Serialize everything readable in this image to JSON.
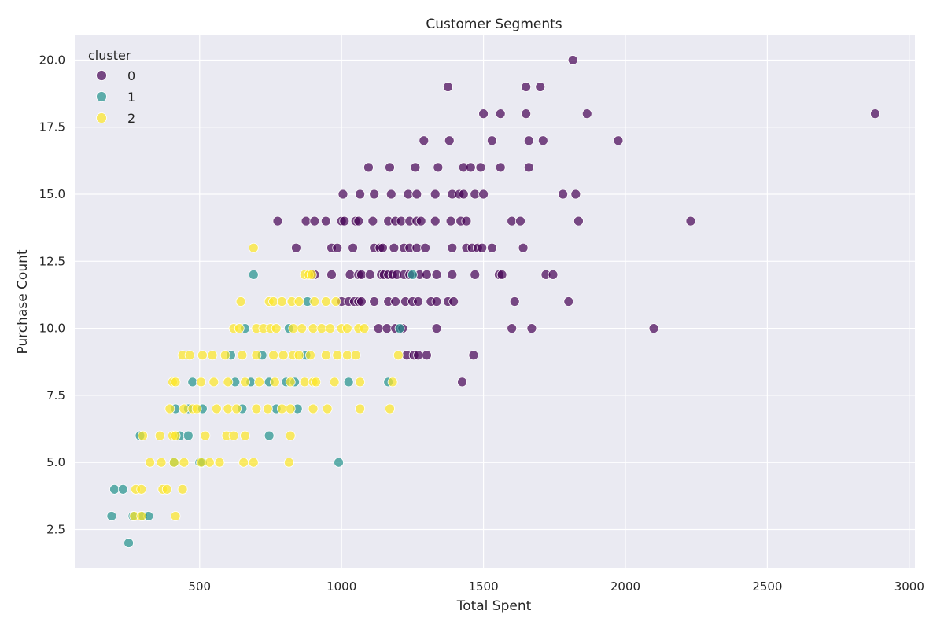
{
  "chart_data": {
    "type": "scatter",
    "title": "Customer Segments",
    "xlabel": "Total Spent",
    "ylabel": "Purchase Count",
    "xlim": [
      60,
      3020
    ],
    "ylim": [
      1.05,
      20.95
    ],
    "xticks": [
      500,
      1000,
      1500,
      2000,
      2500,
      3000
    ],
    "yticks": [
      2.5,
      5.0,
      7.5,
      10.0,
      12.5,
      15.0,
      17.5,
      20.0
    ],
    "grid": true,
    "legend": {
      "title": "cluster",
      "position": "top-left"
    },
    "series": [
      {
        "name": "0",
        "color": "#440154",
        "points": [
          [
            1815,
            20
          ],
          [
            1375,
            19
          ],
          [
            1650,
            19
          ],
          [
            1700,
            19
          ],
          [
            1500,
            18
          ],
          [
            1560,
            18
          ],
          [
            1650,
            18
          ],
          [
            1865,
            18
          ],
          [
            2880,
            18
          ],
          [
            1290,
            17
          ],
          [
            1380,
            17
          ],
          [
            1530,
            17
          ],
          [
            1660,
            17
          ],
          [
            1710,
            17
          ],
          [
            1975,
            17
          ],
          [
            1095,
            16
          ],
          [
            1170,
            16
          ],
          [
            1260,
            16
          ],
          [
            1340,
            16
          ],
          [
            1430,
            16
          ],
          [
            1455,
            16
          ],
          [
            1490,
            16
          ],
          [
            1560,
            16
          ],
          [
            1660,
            16
          ],
          [
            1005,
            15
          ],
          [
            1065,
            15
          ],
          [
            1115,
            15
          ],
          [
            1175,
            15
          ],
          [
            1235,
            15
          ],
          [
            1265,
            15
          ],
          [
            1330,
            15
          ],
          [
            1390,
            15
          ],
          [
            1415,
            15
          ],
          [
            1430,
            15
          ],
          [
            1470,
            15
          ],
          [
            1500,
            15
          ],
          [
            1780,
            15
          ],
          [
            1825,
            15
          ],
          [
            775,
            14
          ],
          [
            875,
            14
          ],
          [
            905,
            14
          ],
          [
            945,
            14
          ],
          [
            1000,
            14
          ],
          [
            1010,
            14
          ],
          [
            1050,
            14
          ],
          [
            1060,
            14
          ],
          [
            1110,
            14
          ],
          [
            1165,
            14
          ],
          [
            1190,
            14
          ],
          [
            1210,
            14
          ],
          [
            1240,
            14
          ],
          [
            1265,
            14
          ],
          [
            1280,
            14
          ],
          [
            1330,
            14
          ],
          [
            1385,
            14
          ],
          [
            1420,
            14
          ],
          [
            1440,
            14
          ],
          [
            1600,
            14
          ],
          [
            1630,
            14
          ],
          [
            1835,
            14
          ],
          [
            2230,
            14
          ],
          [
            840,
            13
          ],
          [
            965,
            13
          ],
          [
            985,
            13
          ],
          [
            1040,
            13
          ],
          [
            1115,
            13
          ],
          [
            1135,
            13
          ],
          [
            1145,
            13
          ],
          [
            1185,
            13
          ],
          [
            1220,
            13
          ],
          [
            1240,
            13
          ],
          [
            1265,
            13
          ],
          [
            1295,
            13
          ],
          [
            1390,
            13
          ],
          [
            1440,
            13
          ],
          [
            1460,
            13
          ],
          [
            1480,
            13
          ],
          [
            1495,
            13
          ],
          [
            1530,
            13
          ],
          [
            1640,
            13
          ],
          [
            905,
            12
          ],
          [
            965,
            12
          ],
          [
            1030,
            12
          ],
          [
            1060,
            12
          ],
          [
            1070,
            12
          ],
          [
            1100,
            12
          ],
          [
            1140,
            12
          ],
          [
            1150,
            12
          ],
          [
            1165,
            12
          ],
          [
            1180,
            12
          ],
          [
            1195,
            12
          ],
          [
            1220,
            12
          ],
          [
            1240,
            12
          ],
          [
            1275,
            12
          ],
          [
            1300,
            12
          ],
          [
            1335,
            12
          ],
          [
            1390,
            12
          ],
          [
            1470,
            12
          ],
          [
            1555,
            12
          ],
          [
            1565,
            12
          ],
          [
            1720,
            12
          ],
          [
            1745,
            12
          ],
          [
            1000,
            11
          ],
          [
            1025,
            11
          ],
          [
            1045,
            11
          ],
          [
            1060,
            11
          ],
          [
            1070,
            11
          ],
          [
            1115,
            11
          ],
          [
            1165,
            11
          ],
          [
            1190,
            11
          ],
          [
            1225,
            11
          ],
          [
            1250,
            11
          ],
          [
            1270,
            11
          ],
          [
            1315,
            11
          ],
          [
            1335,
            11
          ],
          [
            1375,
            11
          ],
          [
            1395,
            11
          ],
          [
            1610,
            11
          ],
          [
            1800,
            11
          ],
          [
            1130,
            10
          ],
          [
            1160,
            10
          ],
          [
            1190,
            10
          ],
          [
            1215,
            10
          ],
          [
            1335,
            10
          ],
          [
            1600,
            10
          ],
          [
            1670,
            10
          ],
          [
            2100,
            10
          ],
          [
            1230,
            9
          ],
          [
            1255,
            9
          ],
          [
            1270,
            9
          ],
          [
            1300,
            9
          ],
          [
            1465,
            9
          ],
          [
            1425,
            8
          ]
        ]
      },
      {
        "name": "1",
        "color": "#21918c",
        "points": [
          [
            690,
            12
          ],
          [
            1250,
            12
          ],
          [
            880,
            11
          ],
          [
            660,
            10
          ],
          [
            815,
            10
          ],
          [
            1205,
            10
          ],
          [
            610,
            9
          ],
          [
            720,
            9
          ],
          [
            875,
            9
          ],
          [
            475,
            8
          ],
          [
            625,
            8
          ],
          [
            680,
            8
          ],
          [
            745,
            8
          ],
          [
            805,
            8
          ],
          [
            835,
            8
          ],
          [
            1025,
            8
          ],
          [
            1165,
            8
          ],
          [
            415,
            7
          ],
          [
            460,
            7
          ],
          [
            510,
            7
          ],
          [
            650,
            7
          ],
          [
            770,
            7
          ],
          [
            845,
            7
          ],
          [
            290,
            6
          ],
          [
            430,
            6
          ],
          [
            460,
            6
          ],
          [
            745,
            6
          ],
          [
            410,
            5
          ],
          [
            500,
            5
          ],
          [
            510,
            5
          ],
          [
            990,
            5
          ],
          [
            200,
            4
          ],
          [
            230,
            4
          ],
          [
            190,
            3
          ],
          [
            265,
            3
          ],
          [
            300,
            3
          ],
          [
            320,
            3
          ],
          [
            250,
            2
          ]
        ]
      },
      {
        "name": "2",
        "color": "#fde725",
        "points": [
          [
            690,
            13
          ],
          [
            870,
            12
          ],
          [
            885,
            12
          ],
          [
            895,
            12
          ],
          [
            645,
            11
          ],
          [
            745,
            11
          ],
          [
            760,
            11
          ],
          [
            790,
            11
          ],
          [
            825,
            11
          ],
          [
            850,
            11
          ],
          [
            905,
            11
          ],
          [
            945,
            11
          ],
          [
            980,
            11
          ],
          [
            620,
            10
          ],
          [
            640,
            10
          ],
          [
            700,
            10
          ],
          [
            725,
            10
          ],
          [
            750,
            10
          ],
          [
            770,
            10
          ],
          [
            830,
            10
          ],
          [
            860,
            10
          ],
          [
            900,
            10
          ],
          [
            930,
            10
          ],
          [
            960,
            10
          ],
          [
            1000,
            10
          ],
          [
            1020,
            10
          ],
          [
            1060,
            10
          ],
          [
            1080,
            10
          ],
          [
            440,
            9
          ],
          [
            465,
            9
          ],
          [
            510,
            9
          ],
          [
            545,
            9
          ],
          [
            590,
            9
          ],
          [
            650,
            9
          ],
          [
            700,
            9
          ],
          [
            760,
            9
          ],
          [
            795,
            9
          ],
          [
            830,
            9
          ],
          [
            850,
            9
          ],
          [
            890,
            9
          ],
          [
            945,
            9
          ],
          [
            985,
            9
          ],
          [
            1020,
            9
          ],
          [
            1050,
            9
          ],
          [
            1200,
            9
          ],
          [
            405,
            8
          ],
          [
            415,
            8
          ],
          [
            505,
            8
          ],
          [
            550,
            8
          ],
          [
            600,
            8
          ],
          [
            660,
            8
          ],
          [
            710,
            8
          ],
          [
            765,
            8
          ],
          [
            820,
            8
          ],
          [
            870,
            8
          ],
          [
            900,
            8
          ],
          [
            910,
            8
          ],
          [
            975,
            8
          ],
          [
            1065,
            8
          ],
          [
            1180,
            8
          ],
          [
            395,
            7
          ],
          [
            445,
            7
          ],
          [
            475,
            7
          ],
          [
            490,
            7
          ],
          [
            560,
            7
          ],
          [
            600,
            7
          ],
          [
            630,
            7
          ],
          [
            700,
            7
          ],
          [
            740,
            7
          ],
          [
            790,
            7
          ],
          [
            820,
            7
          ],
          [
            900,
            7
          ],
          [
            950,
            7
          ],
          [
            1065,
            7
          ],
          [
            1170,
            7
          ],
          [
            300,
            6
          ],
          [
            360,
            6
          ],
          [
            405,
            6
          ],
          [
            415,
            6
          ],
          [
            520,
            6
          ],
          [
            595,
            6
          ],
          [
            620,
            6
          ],
          [
            660,
            6
          ],
          [
            820,
            6
          ],
          [
            325,
            5
          ],
          [
            365,
            5
          ],
          [
            410,
            5
          ],
          [
            445,
            5
          ],
          [
            505,
            5
          ],
          [
            535,
            5
          ],
          [
            570,
            5
          ],
          [
            655,
            5
          ],
          [
            690,
            5
          ],
          [
            815,
            5
          ],
          [
            275,
            4
          ],
          [
            295,
            4
          ],
          [
            370,
            4
          ],
          [
            385,
            4
          ],
          [
            440,
            4
          ],
          [
            270,
            3
          ],
          [
            295,
            3
          ],
          [
            415,
            3
          ]
        ]
      }
    ]
  }
}
